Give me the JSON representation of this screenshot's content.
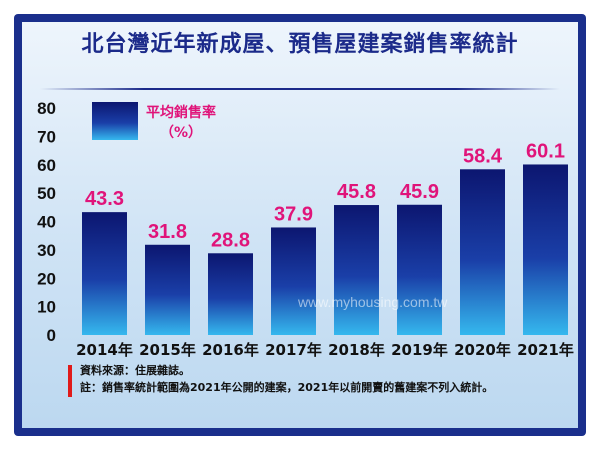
{
  "title": "北台灣近年新成屋、預售屋建案銷售率統計",
  "legend": {
    "label_line1": "平均銷售率",
    "label_line2": "（%）"
  },
  "watermark": "www.myhousing.com.tw",
  "notes": {
    "source": "資料來源：住展雜誌。",
    "note": "註：銷售率統計範圍為2021年公開的建案，2021年以前開賣的舊建案不列入統計。"
  },
  "colors": {
    "bar_top": "#0c1670",
    "bar_bottom": "#35b8ee",
    "label": "#e0147a",
    "frame": "#1a2f8c"
  },
  "chart_data": {
    "type": "bar",
    "title": "北台灣近年新成屋、預售屋建案銷售率統計",
    "categories": [
      "2014年",
      "2015年",
      "2016年",
      "2017年",
      "2018年",
      "2019年",
      "2020年",
      "2021年"
    ],
    "series": [
      {
        "name": "平均銷售率（%）",
        "values": [
          43.3,
          31.8,
          28.8,
          37.9,
          45.8,
          45.9,
          58.4,
          60.1
        ]
      }
    ],
    "value_labels": [
      "43.3",
      "31.8",
      "28.8",
      "37.9",
      "45.8",
      "45.9",
      "58.4",
      "60.1"
    ],
    "ylim": [
      0,
      80
    ],
    "yticks": [
      "0",
      "10",
      "20",
      "30",
      "40",
      "50",
      "60",
      "70",
      "80"
    ],
    "grid": false,
    "legend_position": "top-left"
  }
}
